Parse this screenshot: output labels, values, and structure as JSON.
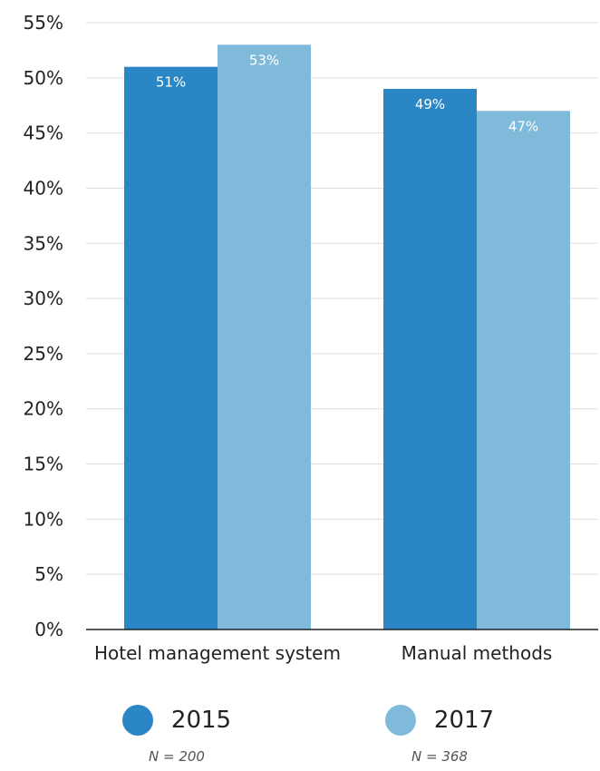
{
  "chart_data": {
    "type": "bar",
    "categories": [
      "Hotel management system",
      "Manual methods"
    ],
    "series": [
      {
        "name": "2015",
        "values": [
          51,
          49
        ],
        "color": "#2a86c4",
        "note": "N = 200"
      },
      {
        "name": "2017",
        "values": [
          53,
          47
        ],
        "color": "#7fbadb",
        "note": "N = 368"
      }
    ],
    "ylim": [
      0,
      55
    ],
    "yticks": [
      "0%",
      "5%",
      "10%",
      "15%",
      "20%",
      "25%",
      "30%",
      "35%",
      "40%",
      "45%",
      "50%",
      "55%"
    ],
    "value_suffix": "%",
    "grid": true,
    "legend_position": "bottom"
  }
}
